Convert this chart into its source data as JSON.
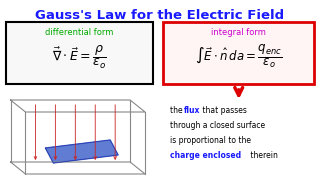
{
  "title": "Gauss's Law for the Electric Field",
  "title_color": "#1a1aff",
  "title_fontsize": 9.5,
  "bg_color": "#ffffff",
  "diff_label": "differential form",
  "diff_label_color": "#00aa00",
  "diff_eq": "$\\vec{\\nabla}\\cdot\\vec{E} = \\dfrac{\\rho}{\\varepsilon_o}$",
  "diff_box_color": "#000000",
  "int_label": "integral form",
  "int_label_color": "#cc00cc",
  "int_eq": "$\\int \\vec{E}\\cdot\\hat{n}\\, da = \\dfrac{q_{enc}}{\\varepsilon_o}$",
  "int_box_color": "#dd0000",
  "arrow_color": "#dd0000",
  "desc_color": "#000000",
  "desc_highlight_color": "#1a1aff",
  "desc_fontsize": 5.5
}
